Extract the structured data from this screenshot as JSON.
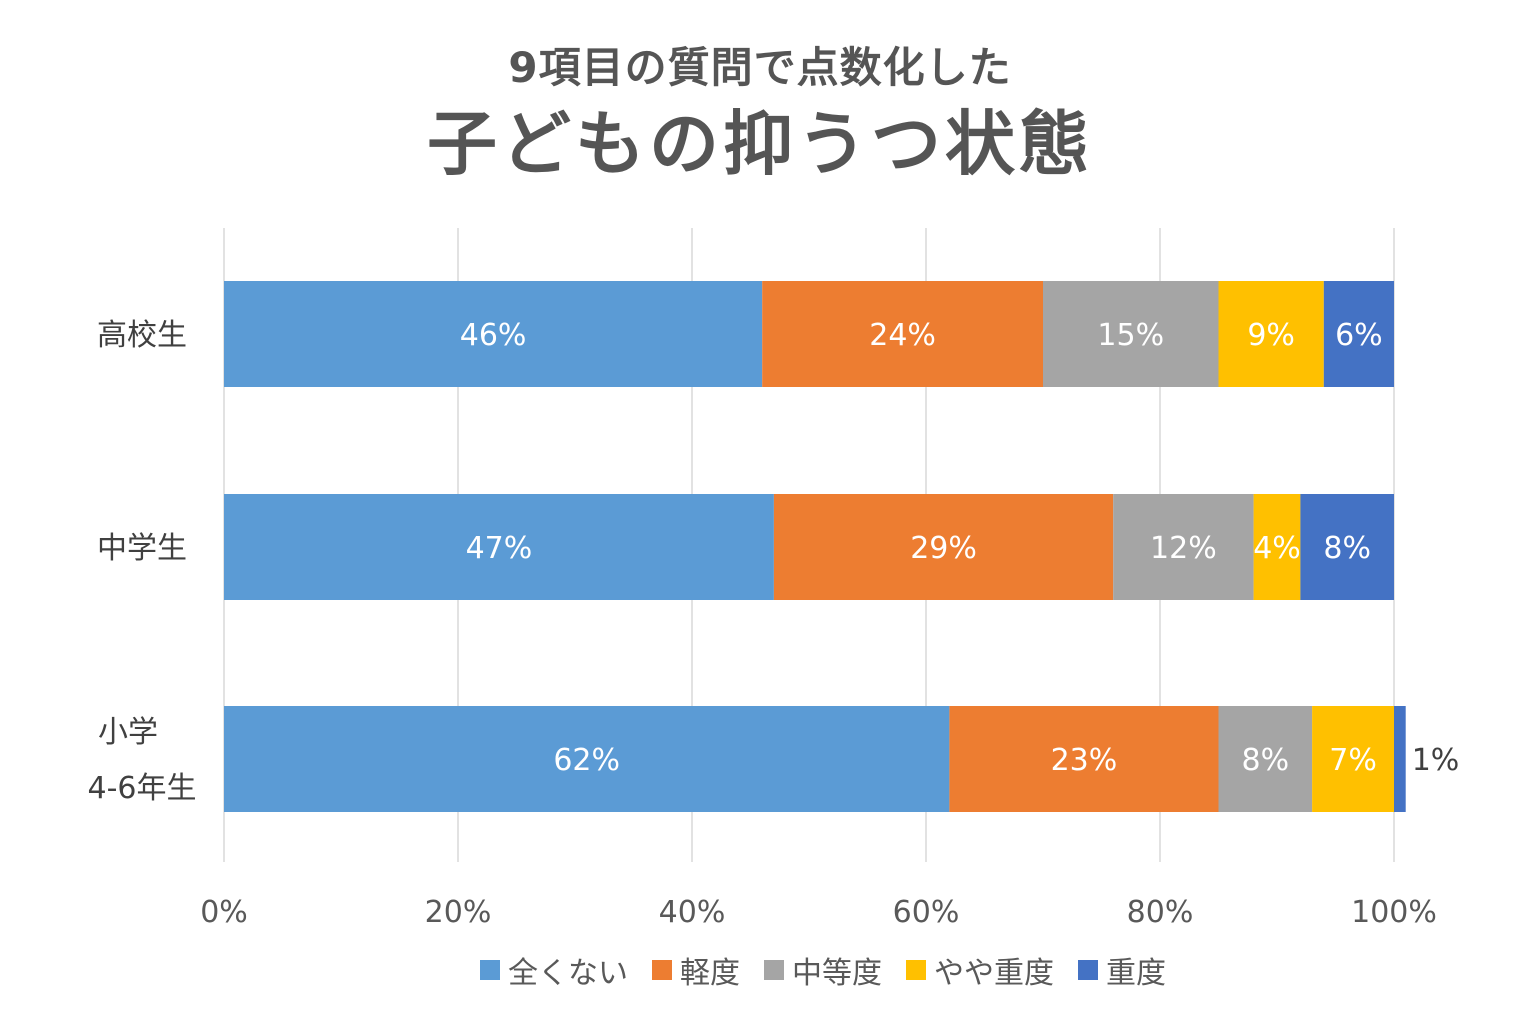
{
  "chart_data": {
    "type": "bar",
    "orientation": "horizontal",
    "stacked": true,
    "subtitle": "9項目の質問で点数化した",
    "title": "子どもの抑うつ状態",
    "categories": [
      {
        "label_lines": [
          "高校生"
        ]
      },
      {
        "label_lines": [
          "中学生"
        ]
      },
      {
        "label_lines": [
          "小学",
          "4-6年生"
        ]
      }
    ],
    "series": [
      {
        "name": "全くない",
        "color": "#5B9BD5",
        "values": [
          46,
          47,
          62
        ],
        "labels": [
          "46%",
          "47%",
          "62%"
        ]
      },
      {
        "name": "軽度",
        "color": "#ED7D31",
        "values": [
          24,
          29,
          23
        ],
        "labels": [
          "24%",
          "29%",
          "23%"
        ]
      },
      {
        "name": "中等度",
        "color": "#A5A5A5",
        "values": [
          15,
          12,
          8
        ],
        "labels": [
          "15%",
          "12%",
          "8%"
        ]
      },
      {
        "name": "やや重度",
        "color": "#FFC000",
        "values": [
          9,
          4,
          7
        ],
        "labels": [
          "9%",
          "4%",
          "7%"
        ]
      },
      {
        "name": "重度",
        "color": "#4472C4",
        "values": [
          6,
          8,
          1
        ],
        "labels": [
          "6%",
          "8%",
          "1%"
        ]
      }
    ],
    "x_ticks": [
      {
        "value": 0,
        "label": "0%"
      },
      {
        "value": 20,
        "label": "20%"
      },
      {
        "value": 40,
        "label": "40%"
      },
      {
        "value": 60,
        "label": "60%"
      },
      {
        "value": 80,
        "label": "80%"
      },
      {
        "value": 100,
        "label": "100%"
      }
    ],
    "xlim": [
      0,
      100
    ],
    "grid": "vertical",
    "legend_position": "bottom"
  }
}
